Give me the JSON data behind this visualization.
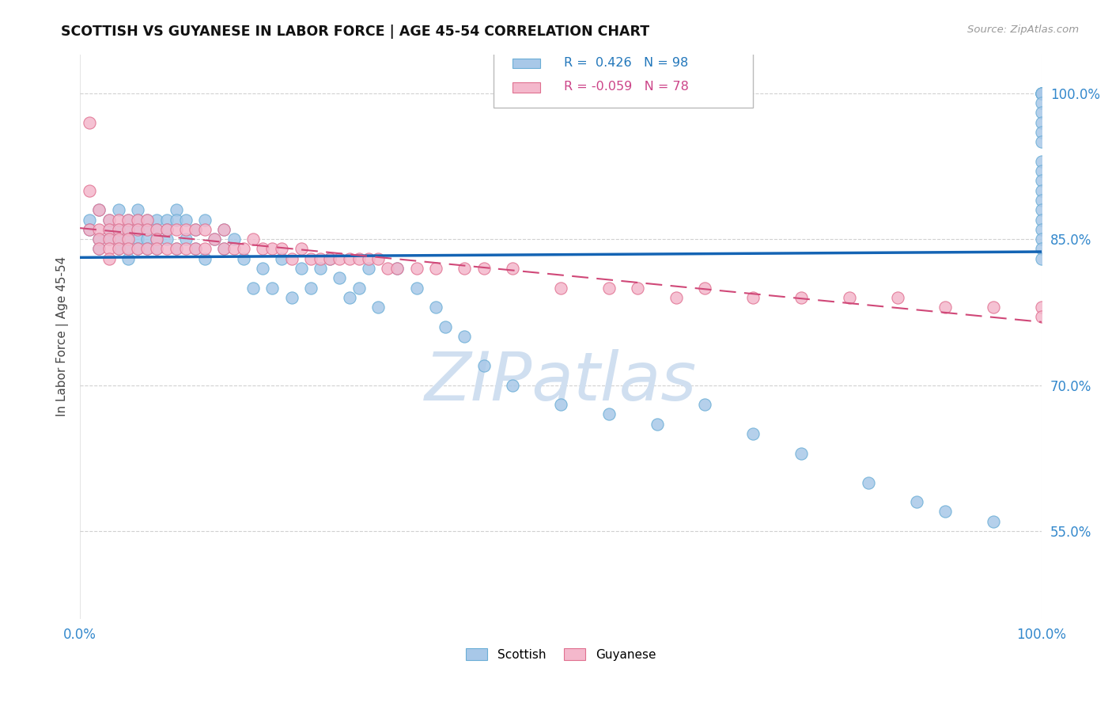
{
  "title": "SCOTTISH VS GUYANESE IN LABOR FORCE | AGE 45-54 CORRELATION CHART",
  "source_text": "Source: ZipAtlas.com",
  "ylabel": "In Labor Force | Age 45-54",
  "xlim": [
    0.0,
    1.0
  ],
  "ylim": [
    0.46,
    1.04
  ],
  "yticks": [
    0.55,
    0.7,
    0.85,
    1.0
  ],
  "ytick_labels": [
    "55.0%",
    "70.0%",
    "85.0%",
    "100.0%"
  ],
  "xticks": [
    0.0,
    1.0
  ],
  "xtick_labels": [
    "0.0%",
    "100.0%"
  ],
  "R_scottish": 0.426,
  "N_scottish": 98,
  "R_guyanese": -0.059,
  "N_guyanese": 78,
  "scottish_color": "#a8c8e8",
  "scottish_edge": "#6baed6",
  "guyanese_color": "#f4b8cc",
  "guyanese_edge": "#e07090",
  "regression_blue": "#1464b4",
  "regression_pink": "#d04878",
  "watermark_color": "#d0dff0",
  "watermark_text": "ZIPatlas",
  "scottish_x": [
    0.01,
    0.01,
    0.02,
    0.02,
    0.02,
    0.03,
    0.03,
    0.03,
    0.04,
    0.04,
    0.04,
    0.04,
    0.05,
    0.05,
    0.05,
    0.05,
    0.05,
    0.06,
    0.06,
    0.06,
    0.06,
    0.06,
    0.07,
    0.07,
    0.07,
    0.07,
    0.08,
    0.08,
    0.08,
    0.08,
    0.09,
    0.09,
    0.09,
    0.1,
    0.1,
    0.1,
    0.11,
    0.11,
    0.12,
    0.12,
    0.13,
    0.13,
    0.14,
    0.15,
    0.15,
    0.16,
    0.17,
    0.18,
    0.19,
    0.2,
    0.21,
    0.22,
    0.23,
    0.24,
    0.25,
    0.26,
    0.27,
    0.28,
    0.29,
    0.3,
    0.31,
    0.33,
    0.35,
    0.37,
    0.38,
    0.4,
    0.42,
    0.45,
    0.5,
    0.55,
    0.6,
    0.65,
    0.7,
    0.75,
    0.82,
    0.87,
    0.9,
    0.95,
    1.0,
    1.0,
    1.0,
    1.0,
    1.0,
    1.0,
    1.0,
    1.0,
    1.0,
    1.0,
    1.0,
    1.0,
    1.0,
    1.0,
    1.0,
    1.0,
    1.0,
    1.0,
    1.0,
    1.0
  ],
  "scottish_y": [
    0.87,
    0.86,
    0.88,
    0.85,
    0.84,
    0.87,
    0.86,
    0.85,
    0.88,
    0.86,
    0.85,
    0.84,
    0.87,
    0.86,
    0.85,
    0.84,
    0.83,
    0.88,
    0.87,
    0.86,
    0.85,
    0.84,
    0.87,
    0.86,
    0.85,
    0.84,
    0.87,
    0.86,
    0.85,
    0.84,
    0.87,
    0.86,
    0.85,
    0.88,
    0.87,
    0.84,
    0.87,
    0.85,
    0.86,
    0.84,
    0.87,
    0.83,
    0.85,
    0.86,
    0.84,
    0.85,
    0.83,
    0.8,
    0.82,
    0.8,
    0.83,
    0.79,
    0.82,
    0.8,
    0.82,
    0.83,
    0.81,
    0.79,
    0.8,
    0.82,
    0.78,
    0.82,
    0.8,
    0.78,
    0.76,
    0.75,
    0.72,
    0.7,
    0.68,
    0.67,
    0.66,
    0.68,
    0.65,
    0.63,
    0.6,
    0.58,
    0.57,
    0.56,
    1.0,
    1.0,
    1.0,
    1.0,
    0.99,
    0.98,
    0.97,
    0.96,
    0.95,
    0.93,
    0.92,
    0.91,
    0.9,
    0.89,
    0.88,
    0.87,
    0.86,
    0.85,
    0.84,
    0.83
  ],
  "guyanese_x": [
    0.01,
    0.01,
    0.01,
    0.02,
    0.02,
    0.02,
    0.02,
    0.03,
    0.03,
    0.03,
    0.03,
    0.03,
    0.04,
    0.04,
    0.04,
    0.04,
    0.05,
    0.05,
    0.05,
    0.05,
    0.06,
    0.06,
    0.06,
    0.07,
    0.07,
    0.07,
    0.08,
    0.08,
    0.08,
    0.09,
    0.09,
    0.1,
    0.1,
    0.11,
    0.11,
    0.12,
    0.12,
    0.13,
    0.13,
    0.14,
    0.15,
    0.15,
    0.16,
    0.17,
    0.18,
    0.19,
    0.2,
    0.21,
    0.22,
    0.23,
    0.24,
    0.25,
    0.26,
    0.27,
    0.28,
    0.29,
    0.3,
    0.31,
    0.32,
    0.33,
    0.35,
    0.37,
    0.4,
    0.42,
    0.45,
    0.5,
    0.55,
    0.58,
    0.62,
    0.65,
    0.7,
    0.75,
    0.8,
    0.85,
    0.9,
    0.95,
    1.0,
    1.0
  ],
  "guyanese_y": [
    0.97,
    0.9,
    0.86,
    0.88,
    0.86,
    0.85,
    0.84,
    0.87,
    0.86,
    0.85,
    0.84,
    0.83,
    0.87,
    0.86,
    0.85,
    0.84,
    0.87,
    0.86,
    0.85,
    0.84,
    0.87,
    0.86,
    0.84,
    0.87,
    0.86,
    0.84,
    0.86,
    0.85,
    0.84,
    0.86,
    0.84,
    0.86,
    0.84,
    0.86,
    0.84,
    0.86,
    0.84,
    0.86,
    0.84,
    0.85,
    0.86,
    0.84,
    0.84,
    0.84,
    0.85,
    0.84,
    0.84,
    0.84,
    0.83,
    0.84,
    0.83,
    0.83,
    0.83,
    0.83,
    0.83,
    0.83,
    0.83,
    0.83,
    0.82,
    0.82,
    0.82,
    0.82,
    0.82,
    0.82,
    0.82,
    0.8,
    0.8,
    0.8,
    0.79,
    0.8,
    0.79,
    0.79,
    0.79,
    0.79,
    0.78,
    0.78,
    0.78,
    0.77
  ]
}
